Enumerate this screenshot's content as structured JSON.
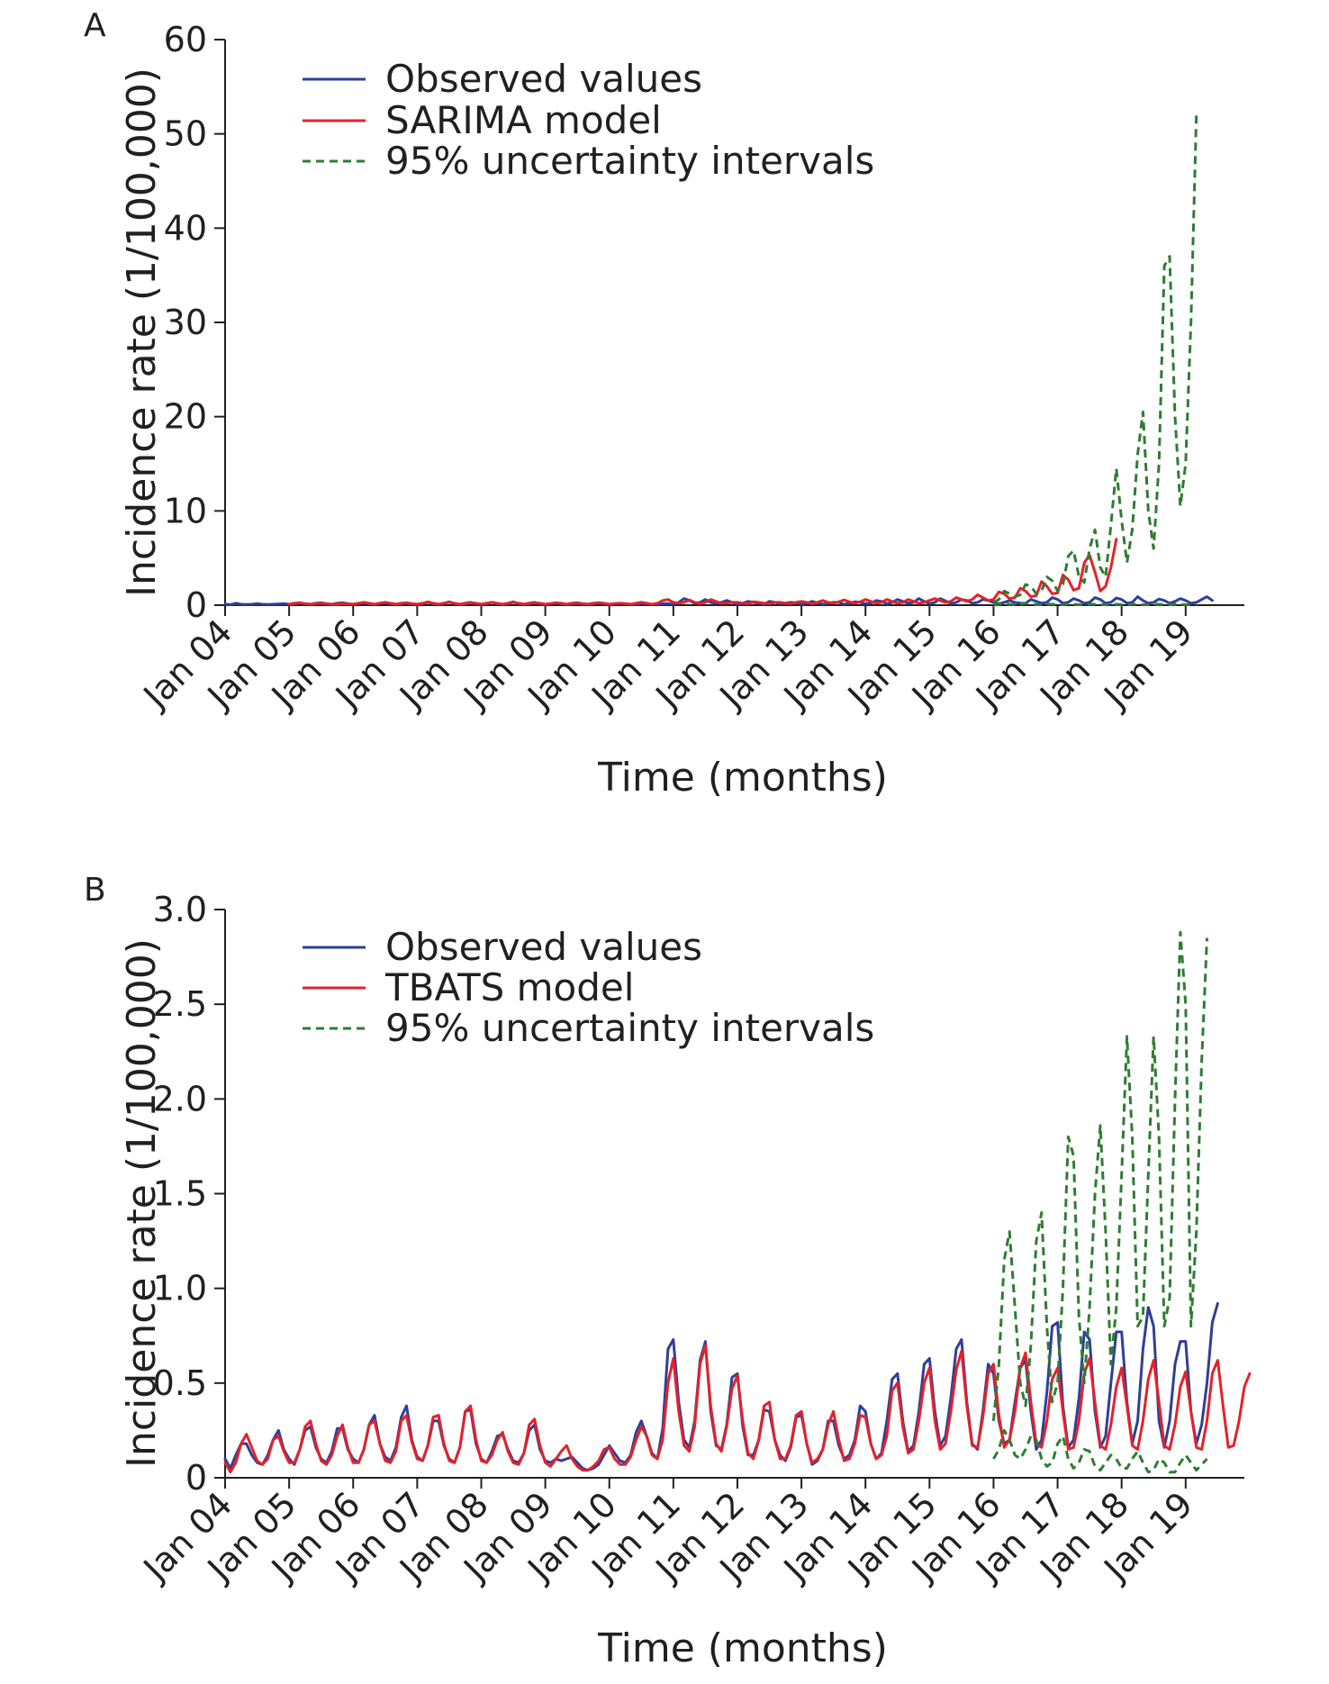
{
  "chart_data": [
    {
      "panel_label": "A",
      "type": "line",
      "xlabel": "Time (months)",
      "ylabel": "Incidence rate (1/100,000)",
      "ylim": [
        0,
        60
      ],
      "yticks": [
        "0",
        "10",
        "20",
        "30",
        "40",
        "50",
        "60"
      ],
      "xlim": [
        0,
        191
      ],
      "x_tick_positions": [
        0,
        12,
        24,
        36,
        48,
        60,
        72,
        84,
        96,
        108,
        120,
        132,
        144,
        156,
        168,
        180
      ],
      "x_tick_labels": [
        "Jan 04",
        "Jan 05",
        "Jan 06",
        "Jan 07",
        "Jan 08",
        "Jan 09",
        "Jan 10",
        "Jan 11",
        "Jan 12",
        "Jan 13",
        "Jan 14",
        "Jan 15",
        "Jan 16",
        "Jan 17",
        "Jan 18",
        "Jan 19"
      ],
      "grid": false,
      "legend_position": "top-left",
      "series": [
        {
          "name": "Observed values",
          "color": "#2e3f98",
          "style": "solid",
          "start": 0,
          "values": [
            0.1,
            0.05,
            0.2,
            0.1,
            0.08,
            0.1,
            0.15,
            0.1,
            0.08,
            0.1,
            0.12,
            0.15,
            0.1,
            0.2,
            0.25,
            0.15,
            0.1,
            0.2,
            0.25,
            0.15,
            0.1,
            0.2,
            0.25,
            0.15,
            0.1,
            0.15,
            0.25,
            0.15,
            0.1,
            0.2,
            0.25,
            0.15,
            0.1,
            0.2,
            0.25,
            0.15,
            0.1,
            0.15,
            0.3,
            0.15,
            0.1,
            0.2,
            0.35,
            0.15,
            0.1,
            0.2,
            0.3,
            0.15,
            0.1,
            0.15,
            0.3,
            0.15,
            0.1,
            0.2,
            0.35,
            0.15,
            0.1,
            0.2,
            0.3,
            0.15,
            0.1,
            0.15,
            0.25,
            0.15,
            0.1,
            0.2,
            0.25,
            0.15,
            0.1,
            0.2,
            0.25,
            0.15,
            0.1,
            0.15,
            0.2,
            0.15,
            0.1,
            0.1,
            0.2,
            0.15,
            0.1,
            0.1,
            0.15,
            0.15,
            0.1,
            0.3,
            0.7,
            0.5,
            0.2,
            0.3,
            0.6,
            0.3,
            0.2,
            0.3,
            0.5,
            0.3,
            0.1,
            0.2,
            0.4,
            0.3,
            0.2,
            0.1,
            0.4,
            0.3,
            0.15,
            0.2,
            0.3,
            0.25,
            0.1,
            0.2,
            0.4,
            0.25,
            0.1,
            0.2,
            0.3,
            0.3,
            0.1,
            0.2,
            0.35,
            0.3,
            0.15,
            0.2,
            0.5,
            0.4,
            0.15,
            0.3,
            0.6,
            0.4,
            0.2,
            0.3,
            0.7,
            0.4,
            0.15,
            0.3,
            0.7,
            0.45,
            0.15,
            0.3,
            0.6,
            0.5,
            0.2,
            0.3,
            0.6,
            0.5,
            0.3,
            0.15,
            0.3,
            0.5,
            0.3,
            0.2,
            0.2,
            0.6,
            0.4,
            0.2,
            0.3,
            0.8,
            0.6,
            0.2,
            0.3,
            0.7,
            0.5,
            0.2,
            0.3,
            0.8,
            0.6,
            0.2,
            0.3,
            0.75,
            0.6,
            0.2,
            0.3,
            0.9,
            0.5,
            0.2,
            0.3,
            0.65,
            0.5,
            0.2,
            0.4,
            0.7,
            0.5,
            0.2,
            0.3,
            0.6,
            0.9,
            0.5
          ]
        },
        {
          "name": "SARIMA model",
          "color": "#e3222a",
          "style": "solid",
          "start": 12,
          "values": [
            0.1,
            0.15,
            0.25,
            0.15,
            0.1,
            0.15,
            0.2,
            0.15,
            0.1,
            0.1,
            0.15,
            0.12,
            0.1,
            0.2,
            0.3,
            0.2,
            0.1,
            0.2,
            0.3,
            0.2,
            0.1,
            0.15,
            0.25,
            0.15,
            0.1,
            0.2,
            0.35,
            0.2,
            0.1,
            0.2,
            0.3,
            0.2,
            0.1,
            0.15,
            0.25,
            0.2,
            0.1,
            0.2,
            0.3,
            0.2,
            0.1,
            0.15,
            0.3,
            0.2,
            0.1,
            0.15,
            0.25,
            0.2,
            0.1,
            0.15,
            0.25,
            0.2,
            0.1,
            0.15,
            0.2,
            0.15,
            0.1,
            0.15,
            0.25,
            0.2,
            0.1,
            0.15,
            0.2,
            0.15,
            0.1,
            0.2,
            0.3,
            0.2,
            0.1,
            0.2,
            0.5,
            0.6,
            0.3,
            0.2,
            0.3,
            0.55,
            0.3,
            0.15,
            0.3,
            0.6,
            0.4,
            0.2,
            0.2,
            0.3,
            0.3,
            0.2,
            0.15,
            0.35,
            0.3,
            0.2,
            0.15,
            0.3,
            0.3,
            0.2,
            0.15,
            0.3,
            0.4,
            0.3,
            0.15,
            0.3,
            0.5,
            0.3,
            0.2,
            0.35,
            0.55,
            0.35,
            0.2,
            0.35,
            0.6,
            0.4,
            0.2,
            0.3,
            0.6,
            0.4,
            0.2,
            0.3,
            0.6,
            0.4,
            0.2,
            0.3,
            0.5,
            0.7,
            0.5,
            0.3,
            0.4,
            0.8,
            0.6,
            0.4,
            0.6,
            1.1,
            0.8,
            0.5,
            0.6,
            1.4,
            1.2,
            0.7,
            0.8,
            1.8,
            1.5,
            0.9,
            1.0,
            2.5,
            2.0,
            1.2,
            1.3,
            3.2,
            2.7,
            1.6,
            1.8,
            4.5,
            5.3,
            3.5,
            1.5,
            2.0,
            4.0,
            7.0
          ]
        },
        {
          "name": "95% uncertainty intervals (upper)",
          "color": "#2e7d32",
          "style": "dashed",
          "start": 144,
          "values": [
            0.3,
            0.6,
            1.5,
            1.2,
            0.9,
            1.1,
            2.2,
            2.0,
            1.2,
            1.5,
            3.0,
            2.6,
            1.5,
            2.2,
            5.2,
            5.8,
            3.0,
            2.4,
            6.0,
            8.0,
            4.0,
            3.0,
            8.5,
            14.5,
            9.0,
            4.5,
            8.0,
            16.0,
            20.5,
            10.0,
            6.0,
            15.0,
            36.0,
            37.0,
            20.0,
            10.5,
            15.0,
            30.0,
            52.0
          ]
        },
        {
          "name": "95% uncertainty intervals (lower)",
          "color": "#2e7d32",
          "style": "dashed",
          "start": 144,
          "values": [
            0.05,
            0.1,
            0.2,
            0.1,
            0.05,
            0.1,
            0.2,
            0.15,
            0.05,
            0.05,
            0.1,
            0.1,
            0.05,
            0.05,
            0.15,
            0.1,
            0.05,
            0.05,
            0.1,
            0.1,
            0.05,
            0.05,
            0.1,
            0.1,
            0.05,
            0.05,
            0.1,
            0.1,
            0.05,
            0.05,
            0.1,
            0.1,
            0.05,
            0.05,
            0.1,
            0.1,
            0.05,
            0.05,
            0.1
          ]
        }
      ],
      "legend": [
        {
          "label": "Observed values",
          "color": "#2e3f98",
          "style": "solid"
        },
        {
          "label": "SARIMA model",
          "color": "#e3222a",
          "style": "solid"
        },
        {
          "label": "95% uncertainty intervals",
          "color": "#2e7d32",
          "style": "dashed"
        }
      ]
    },
    {
      "panel_label": "B",
      "type": "line",
      "xlabel": "Time (months)",
      "ylabel": "Incidence rate (1/100,000)",
      "ylim": [
        0,
        3.0
      ],
      "yticks": [
        "0",
        "0.5",
        "1.0",
        "1.5",
        "2.0",
        "2.5",
        "3.0"
      ],
      "xlim": [
        0,
        191
      ],
      "x_tick_positions": [
        0,
        12,
        24,
        36,
        48,
        60,
        72,
        84,
        96,
        108,
        120,
        132,
        144,
        156,
        168,
        180
      ],
      "x_tick_labels": [
        "Jan 04",
        "Jan 05",
        "Jan 06",
        "Jan 07",
        "Jan 08",
        "Jan 09",
        "Jan 10",
        "Jan 11",
        "Jan 12",
        "Jan 13",
        "Jan 14",
        "Jan 15",
        "Jan 16",
        "Jan 17",
        "Jan 18",
        "Jan 19"
      ],
      "grid": false,
      "legend_position": "top-left",
      "series": [
        {
          "name": "Observed values",
          "color": "#2e3f98",
          "style": "solid",
          "start": 0,
          "values": [
            0.1,
            0.05,
            0.12,
            0.18,
            0.18,
            0.12,
            0.08,
            0.07,
            0.12,
            0.2,
            0.25,
            0.15,
            0.1,
            0.07,
            0.15,
            0.25,
            0.27,
            0.16,
            0.1,
            0.08,
            0.14,
            0.26,
            0.26,
            0.15,
            0.1,
            0.08,
            0.15,
            0.28,
            0.33,
            0.18,
            0.11,
            0.09,
            0.16,
            0.32,
            0.38,
            0.2,
            0.11,
            0.09,
            0.17,
            0.3,
            0.3,
            0.17,
            0.1,
            0.08,
            0.16,
            0.35,
            0.36,
            0.18,
            0.1,
            0.08,
            0.14,
            0.22,
            0.23,
            0.15,
            0.09,
            0.08,
            0.13,
            0.25,
            0.28,
            0.15,
            0.09,
            0.08,
            0.1,
            0.09,
            0.1,
            0.11,
            0.08,
            0.05,
            0.04,
            0.05,
            0.07,
            0.12,
            0.17,
            0.13,
            0.09,
            0.08,
            0.12,
            0.24,
            0.3,
            0.22,
            0.13,
            0.1,
            0.26,
            0.68,
            0.73,
            0.4,
            0.2,
            0.16,
            0.3,
            0.62,
            0.72,
            0.35,
            0.17,
            0.15,
            0.28,
            0.53,
            0.55,
            0.27,
            0.12,
            0.12,
            0.2,
            0.36,
            0.35,
            0.2,
            0.12,
            0.09,
            0.16,
            0.32,
            0.33,
            0.18,
            0.07,
            0.09,
            0.15,
            0.3,
            0.3,
            0.17,
            0.1,
            0.12,
            0.2,
            0.38,
            0.35,
            0.18,
            0.1,
            0.13,
            0.3,
            0.52,
            0.55,
            0.3,
            0.14,
            0.17,
            0.35,
            0.6,
            0.63,
            0.35,
            0.17,
            0.22,
            0.42,
            0.68,
            0.73,
            0.4,
            0.18,
            0.15,
            0.35,
            0.6,
            0.55,
            0.3,
            0.18,
            0.2,
            0.4,
            0.58,
            0.62,
            0.35,
            0.15,
            0.2,
            0.45,
            0.8,
            0.82,
            0.38,
            0.16,
            0.2,
            0.42,
            0.77,
            0.73,
            0.35,
            0.16,
            0.22,
            0.5,
            0.77,
            0.77,
            0.4,
            0.18,
            0.3,
            0.68,
            0.9,
            0.8,
            0.3,
            0.16,
            0.3,
            0.6,
            0.72,
            0.72,
            0.35,
            0.18,
            0.28,
            0.5,
            0.82,
            0.92
          ]
        },
        {
          "name": "TBATS model",
          "color": "#e3222a",
          "style": "solid",
          "start": 0,
          "values": [
            0.08,
            0.03,
            0.08,
            0.18,
            0.23,
            0.16,
            0.09,
            0.07,
            0.1,
            0.2,
            0.22,
            0.14,
            0.08,
            0.08,
            0.15,
            0.27,
            0.3,
            0.18,
            0.09,
            0.07,
            0.12,
            0.22,
            0.28,
            0.16,
            0.08,
            0.08,
            0.15,
            0.28,
            0.3,
            0.18,
            0.09,
            0.08,
            0.14,
            0.3,
            0.33,
            0.19,
            0.1,
            0.09,
            0.17,
            0.32,
            0.33,
            0.18,
            0.09,
            0.08,
            0.16,
            0.35,
            0.38,
            0.2,
            0.09,
            0.08,
            0.12,
            0.2,
            0.24,
            0.14,
            0.08,
            0.07,
            0.13,
            0.28,
            0.31,
            0.17,
            0.08,
            0.06,
            0.1,
            0.14,
            0.17,
            0.1,
            0.06,
            0.04,
            0.04,
            0.06,
            0.09,
            0.15,
            0.16,
            0.1,
            0.07,
            0.07,
            0.11,
            0.2,
            0.27,
            0.22,
            0.12,
            0.1,
            0.2,
            0.5,
            0.63,
            0.35,
            0.17,
            0.14,
            0.27,
            0.6,
            0.7,
            0.38,
            0.18,
            0.14,
            0.27,
            0.47,
            0.54,
            0.3,
            0.13,
            0.1,
            0.2,
            0.38,
            0.4,
            0.2,
            0.1,
            0.1,
            0.17,
            0.33,
            0.35,
            0.18,
            0.08,
            0.1,
            0.15,
            0.28,
            0.35,
            0.2,
            0.09,
            0.1,
            0.18,
            0.33,
            0.32,
            0.18,
            0.1,
            0.12,
            0.22,
            0.46,
            0.5,
            0.27,
            0.13,
            0.15,
            0.3,
            0.5,
            0.58,
            0.3,
            0.15,
            0.18,
            0.35,
            0.57,
            0.67,
            0.38,
            0.17,
            0.16,
            0.32,
            0.55,
            0.6,
            0.33,
            0.16,
            0.2,
            0.35,
            0.58,
            0.66,
            0.4,
            0.18,
            0.16,
            0.3,
            0.52,
            0.58,
            0.35,
            0.15,
            0.16,
            0.3,
            0.55,
            0.63,
            0.4,
            0.17,
            0.15,
            0.28,
            0.48,
            0.58,
            0.38,
            0.17,
            0.15,
            0.3,
            0.52,
            0.62,
            0.4,
            0.17,
            0.15,
            0.28,
            0.48,
            0.56,
            0.35,
            0.16,
            0.15,
            0.3,
            0.55,
            0.62,
            0.38,
            0.16,
            0.17,
            0.3,
            0.48,
            0.55
          ]
        },
        {
          "name": "95% uncertainty intervals (upper)",
          "color": "#2e7d32",
          "style": "dashed",
          "start": 144,
          "values": [
            0.3,
            0.6,
            1.15,
            1.3,
            0.9,
            0.5,
            0.38,
            0.7,
            1.25,
            1.4,
            0.8,
            0.4,
            0.5,
            1.0,
            1.8,
            1.7,
            0.85,
            0.5,
            0.9,
            1.5,
            1.86,
            1.3,
            0.6,
            0.9,
            1.6,
            2.33,
            1.8,
            0.8,
            0.85,
            1.6,
            2.33,
            1.8,
            0.8,
            0.95,
            2.0,
            2.88,
            2.5,
            0.8,
            1.3,
            2.2,
            2.85
          ]
        },
        {
          "name": "95% uncertainty intervals (lower)",
          "color": "#2e7d32",
          "style": "dashed",
          "start": 144,
          "values": [
            0.1,
            0.15,
            0.25,
            0.2,
            0.12,
            0.1,
            0.15,
            0.22,
            0.2,
            0.1,
            0.06,
            0.08,
            0.18,
            0.22,
            0.1,
            0.05,
            0.08,
            0.15,
            0.14,
            0.06,
            0.04,
            0.08,
            0.12,
            0.1,
            0.05,
            0.05,
            0.1,
            0.14,
            0.08,
            0.03,
            0.04,
            0.1,
            0.08,
            0.03,
            0.03,
            0.08,
            0.12,
            0.08,
            0.04,
            0.07,
            0.1
          ]
        }
      ],
      "legend": [
        {
          "label": "Observed values",
          "color": "#2e3f98",
          "style": "solid"
        },
        {
          "label": "TBATS model",
          "color": "#e3222a",
          "style": "solid"
        },
        {
          "label": "95% uncertainty intervals",
          "color": "#2e7d32",
          "style": "dashed"
        }
      ]
    }
  ]
}
